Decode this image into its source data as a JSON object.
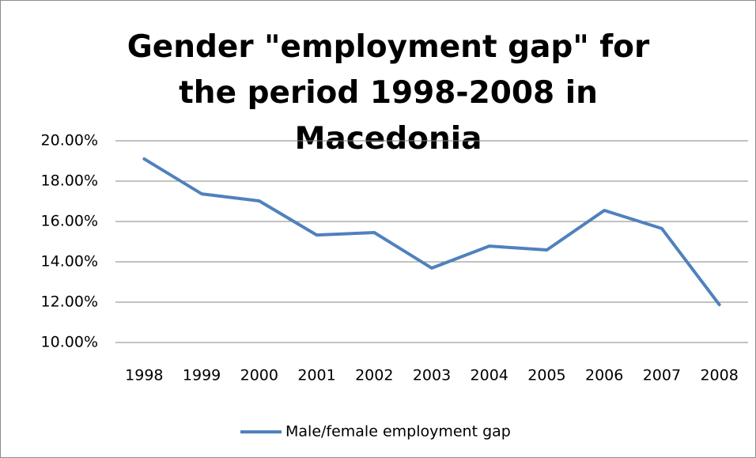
{
  "chart_data": {
    "type": "line",
    "title": "Gender \"employment gap\" for the period 1998-2008 in Macedonia",
    "categories": [
      "1998",
      "1999",
      "2000",
      "2001",
      "2002",
      "2003",
      "2004",
      "2005",
      "2006",
      "2007",
      "2008"
    ],
    "series": [
      {
        "name": "Male/female employment gap",
        "color": "#4f81bd",
        "values": [
          19.1,
          17.37,
          17.02,
          15.33,
          15.45,
          13.69,
          14.78,
          14.59,
          16.55,
          15.65,
          11.88
        ]
      }
    ],
    "ylim": [
      10,
      20
    ],
    "yticks": [
      {
        "value": 10,
        "label": "10.00%"
      },
      {
        "value": 12,
        "label": "12.00%"
      },
      {
        "value": 14,
        "label": "14.00%"
      },
      {
        "value": 16,
        "label": "16.00%"
      },
      {
        "value": 18,
        "label": "18.00%"
      },
      {
        "value": 20,
        "label": "20.00%"
      }
    ],
    "grid": true,
    "legend": "bottom"
  }
}
